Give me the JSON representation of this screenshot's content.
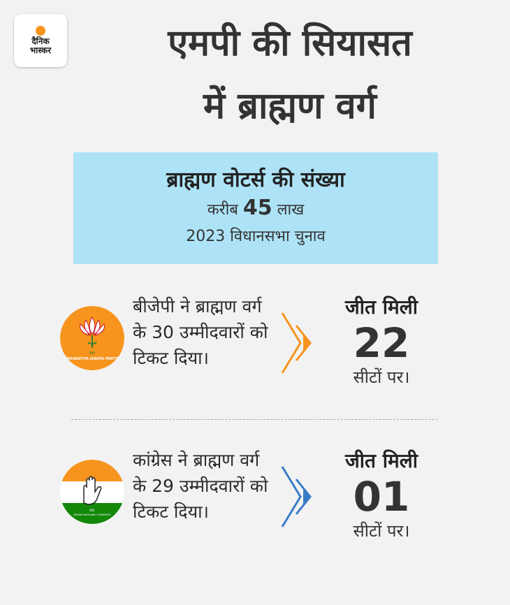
{
  "brand": {
    "line1": "दैनिक",
    "line2": "भास्कर"
  },
  "title": {
    "line1": "एमपी की सियासत",
    "line2": "में ब्राह्मण वर्ग"
  },
  "info": {
    "heading": "ब्राह्मण वोटर्स की संख्या",
    "approx": "करीब",
    "number": "45",
    "unit": "लाख",
    "election": "2023 विधानसभा चुनाव"
  },
  "parties": [
    {
      "logo_text": "BHARATIYA JANATA PARTY",
      "logo_abbr": "BJP",
      "desc": "बीजेपी ने ब्राह्मण वर्ग के 30 उम्मीदवारों को टिकट दिया।",
      "won_label": "जीत मिली",
      "seats": "22",
      "seats_suffix": "सीटों पर।",
      "color": "#f7941d"
    },
    {
      "logo_text": "INDIAN NATIONAL CONGRESS",
      "logo_abbr": "INC",
      "desc": "कांग्रेस ने ब्राह्मण वर्ग के 29 उम्मीदवारों को टिकट दिया।",
      "won_label": "जीत मिली",
      "seats": "01",
      "seats_suffix": "सीटों पर।",
      "color": "#3a7bc8"
    }
  ],
  "colors": {
    "background": "#f2f2f2",
    "info_box": "#aee3f7",
    "bjp_orange": "#f7941d",
    "inc_blue": "#3a7bc8",
    "inc_green": "#138808"
  }
}
